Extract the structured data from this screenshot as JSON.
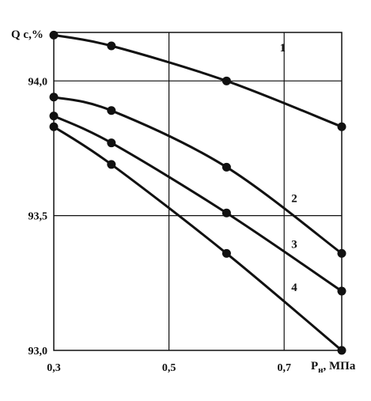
{
  "chart_data": {
    "type": "line",
    "title": "",
    "ylabel": "Q с,%",
    "xlabel": "Р",
    "xlabel_sub": "н",
    "xlabel_unit": ",  МПа",
    "xlim": [
      0.3,
      0.8
    ],
    "ylim": [
      93.0,
      94.18
    ],
    "x_ticks": [
      0.3,
      0.5,
      0.7
    ],
    "x_tick_labels": [
      "0,3",
      "0,5",
      "0,7"
    ],
    "y_ticks": [
      93.0,
      93.5,
      94.0
    ],
    "y_tick_labels": [
      "93,0",
      "93,5",
      "94,0"
    ],
    "grid": true,
    "series": [
      {
        "label": "1",
        "x": [
          0.3,
          0.4,
          0.6,
          0.8
        ],
        "y": [
          94.17,
          94.13,
          94.0,
          93.83
        ]
      },
      {
        "label": "2",
        "x": [
          0.3,
          0.4,
          0.6,
          0.8
        ],
        "y": [
          93.94,
          93.89,
          93.68,
          93.36
        ]
      },
      {
        "label": "3",
        "x": [
          0.3,
          0.4,
          0.6,
          0.8
        ],
        "y": [
          93.87,
          93.77,
          93.51,
          93.22
        ]
      },
      {
        "label": "4",
        "x": [
          0.3,
          0.4,
          0.6,
          0.8
        ],
        "y": [
          93.83,
          93.69,
          93.36,
          93.0
        ]
      }
    ]
  }
}
